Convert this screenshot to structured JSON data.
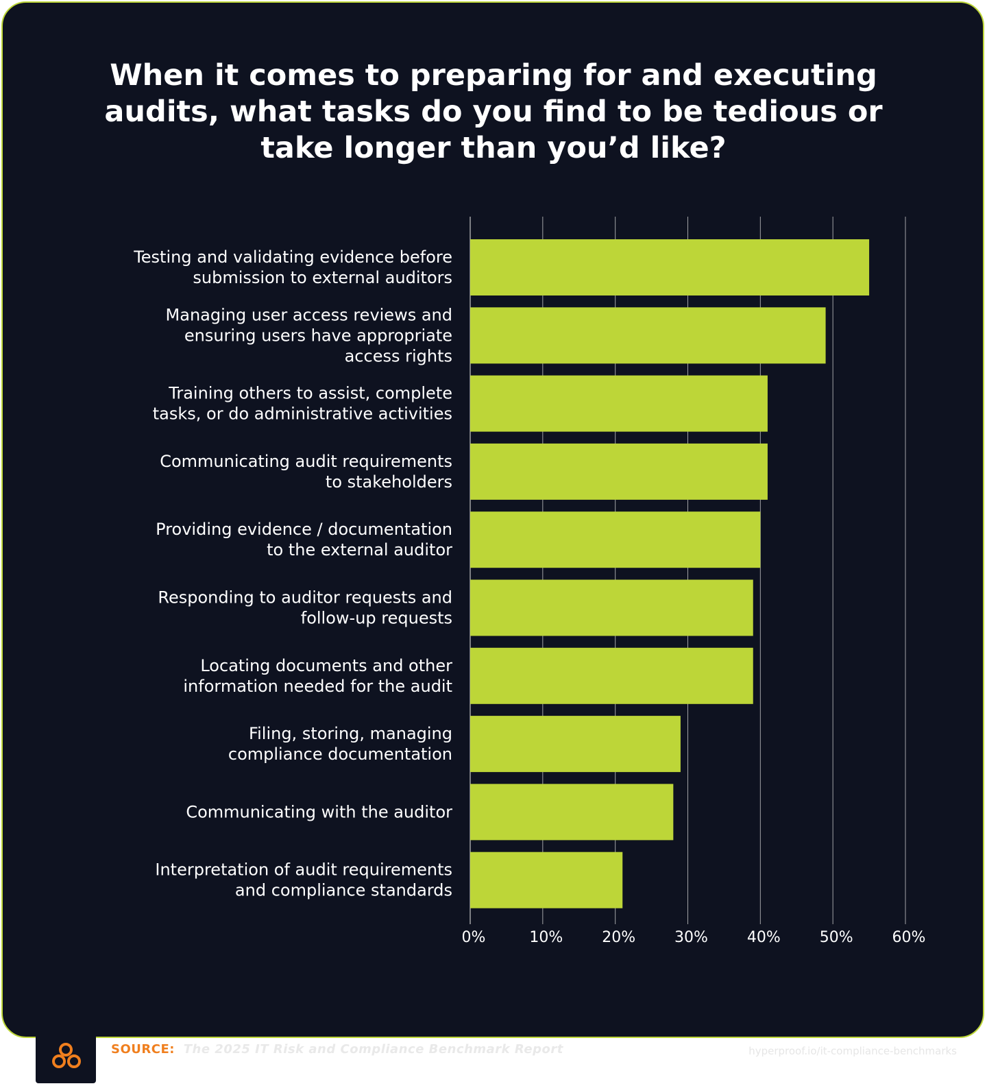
{
  "title": "When it comes to preparing for and executing audits, what tasks do you find to be tedious or take longer than you’d like?",
  "colors": {
    "background": "#0e1220",
    "bar": "#bdd638",
    "border": "#bdd638",
    "text": "#ffffff",
    "grid": "#c8c8c8",
    "accent": "#f07f1e"
  },
  "chart_data": {
    "type": "bar",
    "orientation": "horizontal",
    "title": "When it comes to preparing for and executing audits, what tasks do you find to be tedious or take longer than you’d like?",
    "categories": [
      [
        "Testing and validating evidence before",
        "submission to external auditors"
      ],
      [
        "Managing user access reviews and",
        "ensuring users have appropriate",
        "access rights"
      ],
      [
        "Training others to assist, complete",
        "tasks, or do administrative activities"
      ],
      [
        "Communicating audit requirements",
        "to stakeholders"
      ],
      [
        "Providing evidence / documentation",
        "to the external auditor"
      ],
      [
        "Responding to auditor requests and",
        "follow-up requests"
      ],
      [
        "Locating documents and other",
        "information needed for the audit"
      ],
      [
        "Filing, storing, managing",
        "compliance documentation"
      ],
      [
        "Communicating with the auditor"
      ],
      [
        "Interpretation of audit requirements",
        "and compliance standards"
      ]
    ],
    "values": [
      55,
      49,
      41,
      41,
      40,
      39,
      39,
      29,
      28,
      21
    ],
    "unit": "%",
    "xlim": [
      0,
      60
    ],
    "ticks": [
      "0%",
      "10%",
      "20%",
      "30%",
      "40%",
      "50%",
      "60%"
    ],
    "tick_values": [
      0,
      10,
      20,
      30,
      40,
      50,
      60
    ],
    "grid": true,
    "legend": "none"
  },
  "footer": {
    "logo_icon": "three-circles-logo-icon",
    "source_label": "SOURCE:",
    "source_text": "The 2025 IT Risk and Compliance Benchmark Report",
    "url": "hyperproof.io/it-compliance-benchmarks"
  }
}
